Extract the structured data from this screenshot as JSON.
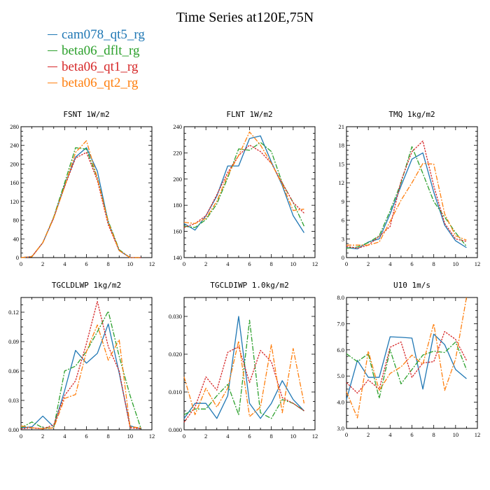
{
  "title": "Time Series at120E,75N",
  "legend": [
    {
      "name": "cam078_qt5_rg",
      "color": "#1f77b4"
    },
    {
      "name": "beta06_dflt_rg",
      "color": "#2ca02c"
    },
    {
      "name": "beta06_qt1_rg",
      "color": "#d62728"
    },
    {
      "name": "beta06_qt2_rg",
      "color": "#ff7f0e"
    }
  ],
  "chart_data": [
    {
      "type": "line",
      "title": "FSNT   1W/m2",
      "x": [
        0,
        1,
        2,
        3,
        4,
        5,
        6,
        7,
        8,
        9,
        10,
        11
      ],
      "xlim": [
        0,
        12
      ],
      "xticks": [
        0,
        2,
        4,
        6,
        8,
        10,
        12
      ],
      "ylim": [
        0,
        280
      ],
      "yticks": [
        "0",
        "40",
        "80",
        "120",
        "160",
        "200",
        "240",
        "280"
      ],
      "series": [
        {
          "name": "cam078_qt5_rg",
          "values": [
            0,
            2,
            32,
            85,
            155,
            215,
            235,
            185,
            75,
            15,
            0,
            0
          ]
        },
        {
          "name": "beta06_dflt_rg",
          "values": [
            0,
            2,
            32,
            87,
            160,
            235,
            232,
            170,
            78,
            17,
            0,
            0
          ]
        },
        {
          "name": "beta06_qt1_rg",
          "values": [
            0,
            2,
            32,
            85,
            152,
            213,
            225,
            165,
            70,
            15,
            0,
            0
          ]
        },
        {
          "name": "beta06_qt2_rg",
          "values": [
            0,
            2,
            32,
            85,
            152,
            225,
            250,
            170,
            75,
            15,
            0,
            0
          ]
        }
      ]
    },
    {
      "type": "line",
      "title": "FLNT   1W/m2",
      "x": [
        0,
        1,
        2,
        3,
        4,
        5,
        6,
        7,
        8,
        9,
        10,
        11
      ],
      "xlim": [
        0,
        12
      ],
      "xticks": [
        0,
        2,
        4,
        6,
        8,
        10,
        12
      ],
      "ylim": [
        140,
        240
      ],
      "yticks": [
        "140",
        "160",
        "180",
        "200",
        "220",
        "240"
      ],
      "series": [
        {
          "name": "cam078_qt5_rg",
          "values": [
            166,
            161,
            172,
            187,
            210,
            210,
            231,
            233,
            213,
            195,
            172,
            159
          ]
        },
        {
          "name": "beta06_dflt_rg",
          "values": [
            164,
            163,
            169,
            181,
            201,
            223,
            222,
            228,
            221,
            197,
            182,
            164
          ]
        },
        {
          "name": "beta06_qt1_rg",
          "values": [
            163,
            166,
            172,
            188,
            205,
            218,
            226,
            221,
            212,
            197,
            182,
            174
          ]
        },
        {
          "name": "beta06_qt2_rg",
          "values": [
            167,
            166,
            170,
            183,
            203,
            218,
            236,
            226,
            212,
            196,
            176,
            177
          ]
        }
      ]
    },
    {
      "type": "line",
      "title": "TMQ   1kg/m2",
      "x": [
        0,
        1,
        2,
        3,
        4,
        5,
        6,
        7,
        8,
        9,
        10,
        11
      ],
      "xlim": [
        0,
        12
      ],
      "xticks": [
        0,
        2,
        4,
        6,
        8,
        10,
        12
      ],
      "ylim": [
        0,
        21
      ],
      "yticks": [
        "0",
        "3",
        "6",
        "9",
        "12",
        "15",
        "18",
        "21"
      ],
      "series": [
        {
          "name": "cam078_qt5_rg",
          "values": [
            1.6,
            1.4,
            2.5,
            3.0,
            7.0,
            11.5,
            15.8,
            16.8,
            10.5,
            5.2,
            2.7,
            1.6
          ]
        },
        {
          "name": "beta06_dflt_rg",
          "values": [
            1.5,
            1.7,
            2.4,
            3.5,
            7.5,
            12.0,
            17.8,
            13.5,
            9.0,
            6.5,
            4.0,
            1.8
          ]
        },
        {
          "name": "beta06_qt1_rg",
          "values": [
            1.8,
            1.5,
            2.0,
            3.4,
            5.0,
            12.3,
            17.0,
            18.7,
            11.5,
            5.5,
            3.0,
            2.6
          ]
        },
        {
          "name": "beta06_qt2_rg",
          "values": [
            2.0,
            2.0,
            2.0,
            2.5,
            5.8,
            9.2,
            12.0,
            15.1,
            15.0,
            7.0,
            3.5,
            2.8
          ]
        }
      ]
    },
    {
      "type": "line",
      "title": "TGCLDLWP   1kg/m2",
      "x": [
        0,
        1,
        2,
        3,
        4,
        5,
        6,
        7,
        8,
        9,
        10,
        11
      ],
      "xlim": [
        0,
        12
      ],
      "xticks": [
        0,
        2,
        4,
        6,
        8,
        10,
        12
      ],
      "ylim": [
        0,
        0.135
      ],
      "yticks": [
        "0.00",
        "0.03",
        "0.06",
        "0.09",
        "0.12"
      ],
      "series": [
        {
          "name": "cam078_qt5_rg",
          "values": [
            0.002,
            0.003,
            0.014,
            0.003,
            0.04,
            0.081,
            0.068,
            0.078,
            0.108,
            0.058,
            0.004,
            0.001
          ]
        },
        {
          "name": "beta06_dflt_rg",
          "values": [
            0.002,
            0.008,
            0.002,
            0.002,
            0.06,
            0.065,
            0.08,
            0.1,
            0.121,
            0.075,
            0.035,
            0.001
          ]
        },
        {
          "name": "beta06_qt1_rg",
          "values": [
            0.001,
            0.002,
            0.001,
            0.005,
            0.035,
            0.05,
            0.088,
            0.131,
            0.085,
            0.06,
            0.002,
            0.001
          ]
        },
        {
          "name": "beta06_qt2_rg",
          "values": [
            0.004,
            0.002,
            0.001,
            0.002,
            0.032,
            0.036,
            0.08,
            0.107,
            0.071,
            0.092,
            0.003,
            0.002
          ]
        }
      ]
    },
    {
      "type": "line",
      "title": "TGCLDIWP   1.0kg/m2",
      "x": [
        0,
        1,
        2,
        3,
        4,
        5,
        6,
        7,
        8,
        9,
        10,
        11
      ],
      "xlim": [
        0,
        12
      ],
      "xticks": [
        0,
        2,
        4,
        6,
        8,
        10,
        12
      ],
      "ylim": [
        0,
        0.035
      ],
      "yticks": [
        "0.000",
        "0.010",
        "0.020",
        "0.030"
      ],
      "series": [
        {
          "name": "cam078_qt5_rg",
          "values": [
            0.003,
            0.007,
            0.007,
            0.003,
            0.009,
            0.03,
            0.007,
            0.003,
            0.007,
            0.013,
            0.008,
            0.005
          ]
        },
        {
          "name": "beta06_dflt_rg",
          "values": [
            0.004,
            0.0055,
            0.0055,
            0.009,
            0.012,
            0.004,
            0.029,
            0.0045,
            0.003,
            0.008,
            0.007,
            0.005
          ]
        },
        {
          "name": "beta06_qt1_rg",
          "values": [
            0.002,
            0.006,
            0.014,
            0.0105,
            0.0205,
            0.022,
            0.0125,
            0.021,
            0.018,
            0.0085,
            0.007,
            0.005
          ]
        },
        {
          "name": "beta06_qt2_rg",
          "values": [
            0.014,
            0.004,
            0.011,
            0.006,
            0.011,
            0.0235,
            0.0035,
            0.006,
            0.0225,
            0.0045,
            0.0215,
            0.007
          ]
        }
      ]
    },
    {
      "type": "line",
      "title": "U10   1m/s",
      "x": [
        0,
        1,
        2,
        3,
        4,
        5,
        6,
        7,
        8,
        9,
        10,
        11
      ],
      "xlim": [
        0,
        12
      ],
      "xticks": [
        0,
        2,
        4,
        6,
        8,
        10,
        12
      ],
      "ylim": [
        3,
        8
      ],
      "yticks": [
        "3.0",
        "4.0",
        "5.0",
        "6.0",
        "7.0",
        "8.0"
      ],
      "series": [
        {
          "name": "cam078_qt5_rg",
          "values": [
            4.1,
            5.6,
            4.95,
            4.95,
            6.5,
            6.48,
            6.45,
            4.5,
            6.6,
            6.2,
            5.25,
            4.9
          ]
        },
        {
          "name": "beta06_dflt_rg",
          "values": [
            5.85,
            5.55,
            5.85,
            4.15,
            6.0,
            4.7,
            5.25,
            5.8,
            5.95,
            5.9,
            6.3,
            5.25
          ]
        },
        {
          "name": "beta06_qt1_rg",
          "values": [
            4.75,
            4.35,
            4.85,
            4.5,
            6.1,
            6.3,
            4.95,
            5.5,
            5.55,
            6.7,
            6.4,
            5.6
          ]
        },
        {
          "name": "beta06_qt2_rg",
          "values": [
            4.4,
            3.4,
            5.95,
            4.45,
            5.1,
            5.35,
            5.8,
            5.45,
            7.0,
            4.45,
            5.65,
            8.0
          ]
        }
      ]
    }
  ]
}
